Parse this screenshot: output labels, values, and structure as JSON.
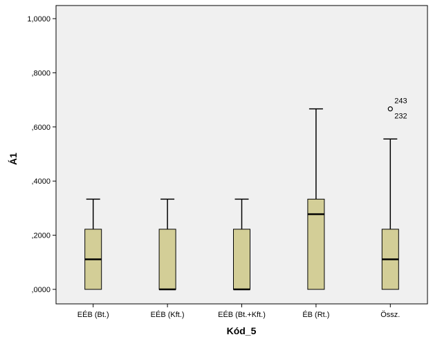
{
  "chart_data": {
    "type": "boxplot",
    "xlabel": "Kód_5",
    "ylabel": "Á1",
    "ylim": [
      0,
      1
    ],
    "yticks": [
      0,
      0.2,
      0.4,
      0.6,
      0.8,
      1.0
    ],
    "ytick_labels": [
      ",0000",
      ",2000",
      ",4000",
      ",6000",
      ",8000",
      "1,0000"
    ],
    "grid": false,
    "categories": [
      "EÉB (Bt.)",
      "EÉB (Kft.)",
      "EÉB (Bt.+Kft.)",
      "ÉB (Rt.)",
      "Össz."
    ],
    "boxes": [
      {
        "category": "EÉB (Bt.)",
        "min": 0.0,
        "q1": 0.0,
        "median": 0.1111,
        "q3": 0.2222,
        "max": 0.3333,
        "outliers": []
      },
      {
        "category": "EÉB (Kft.)",
        "min": 0.0,
        "q1": 0.0,
        "median": 0.0,
        "q3": 0.2222,
        "max": 0.3333,
        "outliers": []
      },
      {
        "category": "EÉB (Bt.+Kft.)",
        "min": 0.0,
        "q1": 0.0,
        "median": 0.0,
        "q3": 0.2222,
        "max": 0.3333,
        "outliers": []
      },
      {
        "category": "ÉB (Rt.)",
        "min": 0.0,
        "q1": 0.0,
        "median": 0.2778,
        "q3": 0.3333,
        "max": 0.6667,
        "outliers": []
      },
      {
        "category": "Össz.",
        "min": 0.0,
        "q1": 0.0,
        "median": 0.1111,
        "q3": 0.2222,
        "max": 0.5556,
        "outliers": [
          {
            "value": 0.6667,
            "labels": [
              "243",
              "232"
            ]
          }
        ]
      }
    ],
    "colors": {
      "plot_background": "#f0f0f0",
      "box_fill": "#d3ce97",
      "stroke": "#000000"
    }
  }
}
